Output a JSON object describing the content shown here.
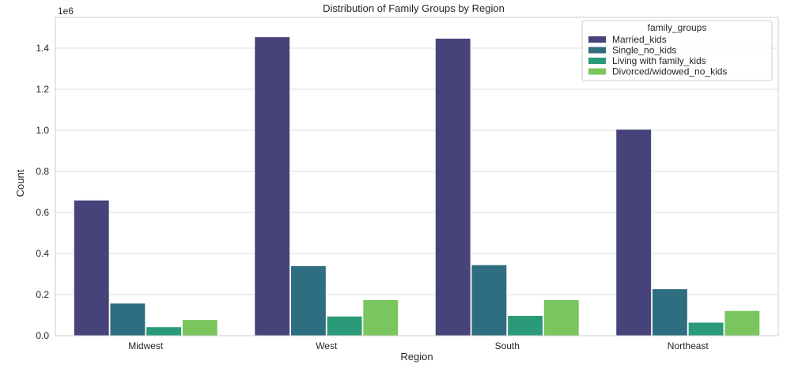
{
  "chart_data": {
    "type": "bar",
    "title": "Distribution of Family Groups by Region",
    "xlabel": "Region",
    "ylabel": "Count",
    "y_offset_label": "1e6",
    "categories": [
      "Midwest",
      "West",
      "South",
      "Northeast"
    ],
    "ylim": [
      0,
      1.55
    ],
    "y_ticks": [
      "0.0",
      "0.2",
      "0.4",
      "0.6",
      "0.8",
      "1.0",
      "1.2",
      "1.4"
    ],
    "y_scale": "linear",
    "grid": "horizontal",
    "legend_title": "family_groups",
    "legend_position": "top-right",
    "series": [
      {
        "name": "Married_kids",
        "color": "#46437a",
        "values": [
          0.66,
          1.455,
          1.448,
          1.005
        ]
      },
      {
        "name": "Single_no_kids",
        "color": "#2f6e81",
        "values": [
          0.158,
          0.34,
          0.345,
          0.228
        ]
      },
      {
        "name": "Living with family_kids",
        "color": "#2a9a78",
        "values": [
          0.043,
          0.095,
          0.098,
          0.065
        ]
      },
      {
        "name": "Divorced/widowed_no_kids",
        "color": "#7ac55d",
        "values": [
          0.078,
          0.175,
          0.175,
          0.122
        ]
      }
    ]
  }
}
